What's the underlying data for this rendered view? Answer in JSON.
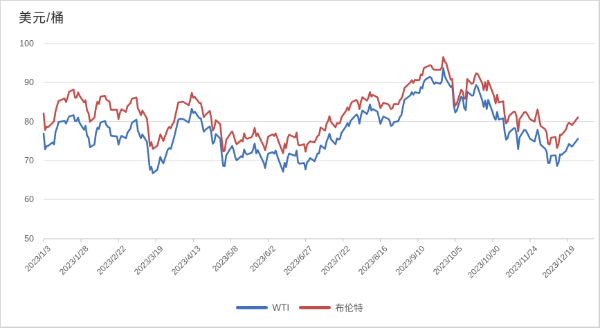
{
  "figure": {
    "title": "美元/桶"
  },
  "legend": {
    "items": [
      {
        "label": "WTI",
        "color": "#4273b8"
      },
      {
        "label": "布伦特",
        "color": "#c0504d"
      }
    ]
  },
  "chart_data": {
    "type": "line",
    "title": "美元/桶",
    "ylabel": "美元/桶",
    "ylim": [
      50,
      100
    ],
    "y_ticks": [
      100,
      90,
      80,
      70,
      60,
      50
    ],
    "grid": "horizontal",
    "legend_position": "bottom",
    "x_axis": {
      "start": "2023/1/3",
      "end": "2024/1/6"
    },
    "x_tick_labels": [
      "2023/1/3",
      "2023/1/28",
      "2023/2/22",
      "2023/3/19",
      "2023/4/13",
      "2023/5/8",
      "2023/6/2",
      "2023/6/27",
      "2023/7/22",
      "2023/8/16",
      "2023/9/10",
      "2023/10/5",
      "2023/10/30",
      "2023/11/24",
      "2023/12/19"
    ],
    "dates": [
      "2023/1/3",
      "2023/1/4",
      "2023/1/5",
      "2023/1/6",
      "2023/1/9",
      "2023/1/10",
      "2023/1/11",
      "2023/1/12",
      "2023/1/13",
      "2023/1/17",
      "2023/1/18",
      "2023/1/19",
      "2023/1/20",
      "2023/1/23",
      "2023/1/24",
      "2023/1/25",
      "2023/1/26",
      "2023/1/27",
      "2023/1/30",
      "2023/1/31",
      "2023/2/1",
      "2023/2/2",
      "2023/2/3",
      "2023/2/6",
      "2023/2/7",
      "2023/2/8",
      "2023/2/9",
      "2023/2/10",
      "2023/2/13",
      "2023/2/14",
      "2023/2/15",
      "2023/2/16",
      "2023/2/17",
      "2023/2/21",
      "2023/2/22",
      "2023/2/23",
      "2023/2/24",
      "2023/2/27",
      "2023/2/28",
      "2023/3/1",
      "2023/3/2",
      "2023/3/3",
      "2023/3/6",
      "2023/3/7",
      "2023/3/8",
      "2023/3/9",
      "2023/3/10",
      "2023/3/13",
      "2023/3/14",
      "2023/3/15",
      "2023/3/16",
      "2023/3/17",
      "2023/3/20",
      "2023/3/21",
      "2023/3/22",
      "2023/3/23",
      "2023/3/24",
      "2023/3/27",
      "2023/3/28",
      "2023/3/29",
      "2023/3/30",
      "2023/3/31",
      "2023/4/3",
      "2023/4/4",
      "2023/4/5",
      "2023/4/6",
      "2023/4/10",
      "2023/4/11",
      "2023/4/12",
      "2023/4/13",
      "2023/4/14",
      "2023/4/17",
      "2023/4/18",
      "2023/4/19",
      "2023/4/20",
      "2023/4/21",
      "2023/4/24",
      "2023/4/25",
      "2023/4/26",
      "2023/4/27",
      "2023/4/28",
      "2023/5/1",
      "2023/5/2",
      "2023/5/3",
      "2023/5/4",
      "2023/5/5",
      "2023/5/8",
      "2023/5/9",
      "2023/5/10",
      "2023/5/11",
      "2023/5/12",
      "2023/5/15",
      "2023/5/16",
      "2023/5/17",
      "2023/5/18",
      "2023/5/19",
      "2023/5/22",
      "2023/5/23",
      "2023/5/24",
      "2023/5/25",
      "2023/5/26",
      "2023/5/30",
      "2023/5/31",
      "2023/6/1",
      "2023/6/2",
      "2023/6/5",
      "2023/6/6",
      "2023/6/7",
      "2023/6/8",
      "2023/6/9",
      "2023/6/12",
      "2023/6/13",
      "2023/6/14",
      "2023/6/15",
      "2023/6/16",
      "2023/6/20",
      "2023/6/21",
      "2023/6/22",
      "2023/6/23",
      "2023/6/26",
      "2023/6/27",
      "2023/6/28",
      "2023/6/29",
      "2023/6/30",
      "2023/7/3",
      "2023/7/5",
      "2023/7/6",
      "2023/7/7",
      "2023/7/10",
      "2023/7/11",
      "2023/7/12",
      "2023/7/13",
      "2023/7/14",
      "2023/7/17",
      "2023/7/18",
      "2023/7/19",
      "2023/7/20",
      "2023/7/21",
      "2023/7/24",
      "2023/7/25",
      "2023/7/26",
      "2023/7/27",
      "2023/7/28",
      "2023/7/31",
      "2023/8/1",
      "2023/8/2",
      "2023/8/3",
      "2023/8/4",
      "2023/8/7",
      "2023/8/8",
      "2023/8/9",
      "2023/8/10",
      "2023/8/11",
      "2023/8/14",
      "2023/8/15",
      "2023/8/16",
      "2023/8/17",
      "2023/8/18",
      "2023/8/21",
      "2023/8/22",
      "2023/8/23",
      "2023/8/24",
      "2023/8/25",
      "2023/8/28",
      "2023/8/29",
      "2023/8/30",
      "2023/8/31",
      "2023/9/1",
      "2023/9/5",
      "2023/9/6",
      "2023/9/7",
      "2023/9/8",
      "2023/9/11",
      "2023/9/12",
      "2023/9/13",
      "2023/9/14",
      "2023/9/15",
      "2023/9/18",
      "2023/9/19",
      "2023/9/20",
      "2023/9/21",
      "2023/9/22",
      "2023/9/25",
      "2023/9/26",
      "2023/9/27",
      "2023/9/28",
      "2023/9/29",
      "2023/10/2",
      "2023/10/3",
      "2023/10/4",
      "2023/10/5",
      "2023/10/6",
      "2023/10/9",
      "2023/10/10",
      "2023/10/11",
      "2023/10/12",
      "2023/10/13",
      "2023/10/16",
      "2023/10/17",
      "2023/10/18",
      "2023/10/19",
      "2023/10/20",
      "2023/10/23",
      "2023/10/24",
      "2023/10/25",
      "2023/10/26",
      "2023/10/27",
      "2023/10/30",
      "2023/10/31",
      "2023/11/1",
      "2023/11/2",
      "2023/11/3",
      "2023/11/6",
      "2023/11/7",
      "2023/11/8",
      "2023/11/9",
      "2023/11/10",
      "2023/11/13",
      "2023/11/14",
      "2023/11/15",
      "2023/11/16",
      "2023/11/17",
      "2023/11/20",
      "2023/11/21",
      "2023/11/22",
      "2023/11/24",
      "2023/11/27",
      "2023/11/28",
      "2023/11/29",
      "2023/11/30",
      "2023/12/1",
      "2023/12/4",
      "2023/12/5",
      "2023/12/6",
      "2023/12/7",
      "2023/12/8",
      "2023/12/11",
      "2023/12/12",
      "2023/12/13",
      "2023/12/14",
      "2023/12/15",
      "2023/12/18",
      "2023/12/19",
      "2023/12/20",
      "2023/12/21",
      "2023/12/22",
      "2023/12/26"
    ],
    "series": [
      {
        "name": "WTI",
        "color": "#4273b8",
        "values": [
          76.93,
          72.84,
          73.67,
          73.77,
          74.63,
          74.12,
          77.41,
          78.39,
          79.86,
          80.18,
          79.48,
          80.33,
          81.31,
          81.62,
          80.13,
          80.15,
          81.01,
          79.68,
          77.9,
          78.87,
          76.41,
          75.88,
          73.39,
          74.11,
          77.14,
          78.47,
          78.06,
          79.72,
          80.14,
          79.06,
          78.59,
          78.49,
          76.34,
          76.16,
          74.05,
          75.39,
          76.32,
          75.68,
          77.05,
          77.69,
          78.16,
          79.68,
          80.46,
          77.58,
          76.66,
          75.72,
          76.68,
          74.8,
          71.33,
          67.61,
          68.35,
          66.74,
          67.64,
          69.33,
          70.9,
          69.96,
          69.26,
          72.81,
          73.2,
          72.97,
          74.37,
          75.67,
          80.42,
          80.71,
          80.61,
          80.7,
          79.74,
          81.53,
          83.26,
          82.16,
          82.52,
          80.83,
          80.86,
          79.16,
          77.37,
          77.87,
          78.76,
          77.07,
          74.3,
          74.76,
          76.78,
          75.66,
          71.66,
          68.6,
          68.56,
          71.34,
          73.16,
          73.71,
          72.56,
          70.87,
          70.04,
          71.11,
          70.86,
          72.83,
          71.86,
          71.55,
          71.99,
          72.91,
          74.34,
          71.83,
          72.67,
          69.46,
          68.09,
          70.1,
          71.74,
          72.15,
          71.74,
          72.53,
          71.29,
          70.17,
          67.12,
          69.42,
          68.27,
          70.62,
          71.78,
          71.19,
          72.53,
          69.51,
          69.16,
          69.37,
          67.7,
          69.56,
          69.86,
          70.64,
          69.79,
          71.79,
          71.8,
          73.86,
          72.99,
          74.83,
          75.75,
          76.89,
          75.42,
          74.15,
          75.66,
          75.35,
          75.63,
          77.07,
          78.74,
          79.63,
          78.78,
          80.09,
          80.58,
          81.8,
          81.37,
          79.49,
          81.55,
          82.82,
          81.94,
          82.92,
          84.4,
          82.82,
          83.19,
          82.51,
          80.99,
          79.38,
          80.39,
          81.25,
          80.72,
          80.35,
          78.89,
          79.05,
          79.83,
          80.1,
          81.16,
          81.63,
          83.63,
          85.55,
          86.69,
          87.54,
          86.87,
          87.51,
          87.29,
          88.84,
          88.52,
          90.16,
          90.77,
          91.48,
          91.2,
          90.28,
          89.63,
          90.03,
          89.68,
          90.39,
          93.68,
          91.71,
          90.79,
          88.82,
          89.23,
          84.22,
          82.31,
          82.79,
          86.38,
          85.97,
          83.49,
          82.91,
          87.69,
          86.66,
          86.66,
          88.32,
          89.37,
          88.75,
          85.49,
          83.74,
          85.39,
          83.21,
          85.54,
          82.31,
          81.02,
          80.44,
          82.46,
          80.51,
          80.82,
          77.37,
          75.33,
          75.74,
          77.17,
          78.26,
          78.26,
          76.66,
          72.9,
          75.89,
          77.83,
          77.77,
          77.1,
          75.54,
          74.86,
          76.41,
          77.86,
          75.96,
          74.07,
          73.04,
          72.32,
          69.38,
          69.34,
          71.23,
          71.32,
          68.61,
          69.47,
          71.58,
          71.43,
          72.47,
          73.44,
          74.22,
          73.89,
          73.56,
          75.57
        ]
      },
      {
        "name": "布伦特",
        "color": "#c0504d",
        "values": [
          82.1,
          77.84,
          78.69,
          78.57,
          79.65,
          80.1,
          82.67,
          84.03,
          85.28,
          85.92,
          84.98,
          86.16,
          87.63,
          88.19,
          86.13,
          86.12,
          87.47,
          86.66,
          84.9,
          85.46,
          82.84,
          82.17,
          79.94,
          80.99,
          83.69,
          85.09,
          84.5,
          86.39,
          86.61,
          85.58,
          85.38,
          85.14,
          83.0,
          83.05,
          80.6,
          82.21,
          83.16,
          82.45,
          83.89,
          84.31,
          84.75,
          85.83,
          86.18,
          83.29,
          82.66,
          81.59,
          82.78,
          80.77,
          77.45,
          73.69,
          74.7,
          72.97,
          73.79,
          75.32,
          76.69,
          75.91,
          74.99,
          78.12,
          78.65,
          78.28,
          79.27,
          79.77,
          84.93,
          84.94,
          84.99,
          85.12,
          84.18,
          85.61,
          87.33,
          86.09,
          86.31,
          84.76,
          84.77,
          83.12,
          81.1,
          81.66,
          82.73,
          80.77,
          77.69,
          78.37,
          80.33,
          79.31,
          75.32,
          72.33,
          72.5,
          75.3,
          77.01,
          77.44,
          76.41,
          74.98,
          74.17,
          75.23,
          74.91,
          76.96,
          75.86,
          75.58,
          75.99,
          76.84,
          78.36,
          76.26,
          76.95,
          73.71,
          72.66,
          74.28,
          76.13,
          76.71,
          76.29,
          76.95,
          75.96,
          74.79,
          71.84,
          74.29,
          73.2,
          75.67,
          76.61,
          75.9,
          77.12,
          74.14,
          73.85,
          74.18,
          72.26,
          74.03,
          74.51,
          74.9,
          74.65,
          76.25,
          76.52,
          78.47,
          77.69,
          79.4,
          80.11,
          81.36,
          79.87,
          78.5,
          79.63,
          79.46,
          79.64,
          81.07,
          82.74,
          83.64,
          82.92,
          84.24,
          84.99,
          85.56,
          84.91,
          83.2,
          85.14,
          86.24,
          85.34,
          86.17,
          87.55,
          86.4,
          86.81,
          86.21,
          84.89,
          83.45,
          84.12,
          84.8,
          84.46,
          84.03,
          83.21,
          83.36,
          84.48,
          84.42,
          85.49,
          85.86,
          86.86,
          88.55,
          90.04,
          90.6,
          89.92,
          90.65,
          90.64,
          92.06,
          91.88,
          93.7,
          93.93,
          94.43,
          94.34,
          93.53,
          93.3,
          93.27,
          93.29,
          93.96,
          96.55,
          95.38,
          94.9,
          90.71,
          90.92,
          85.81,
          84.07,
          84.58,
          88.15,
          87.65,
          85.82,
          86.0,
          90.89,
          89.65,
          89.9,
          91.5,
          92.38,
          92.16,
          89.83,
          88.07,
          90.13,
          87.93,
          90.48,
          87.45,
          86.35,
          84.63,
          86.85,
          84.89,
          85.18,
          81.61,
          79.54,
          80.01,
          81.43,
          82.52,
          82.47,
          81.18,
          77.42,
          80.61,
          82.32,
          82.45,
          81.96,
          80.58,
          79.98,
          81.68,
          83.1,
          80.86,
          78.88,
          78.03,
          77.2,
          74.3,
          74.05,
          75.84,
          76.03,
          73.24,
          74.26,
          76.61,
          76.55,
          77.95,
          79.23,
          79.7,
          79.39,
          79.07,
          81.07
        ]
      }
    ]
  }
}
